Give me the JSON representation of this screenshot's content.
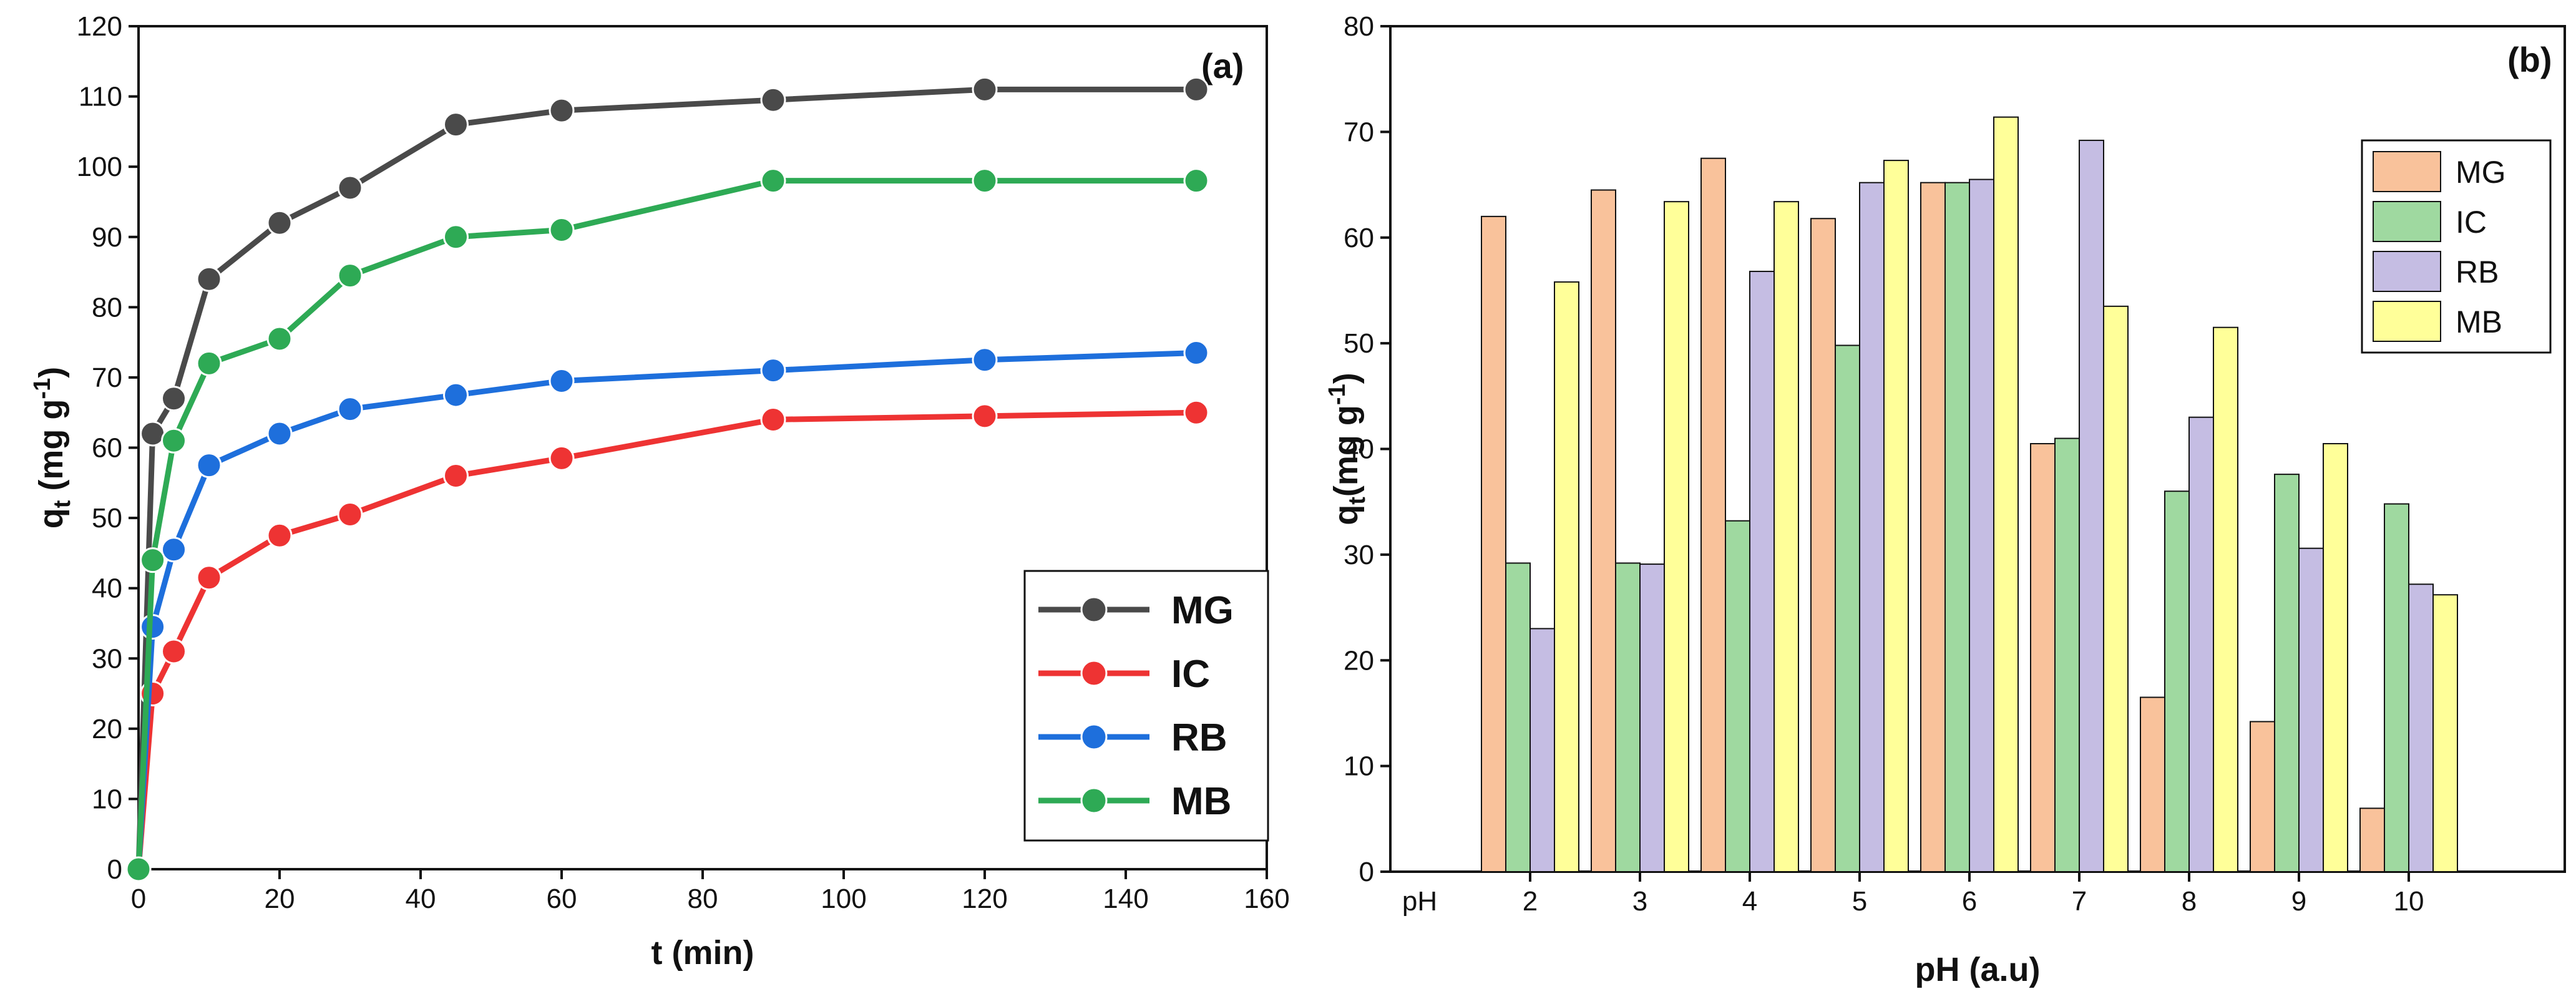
{
  "chart_data": [
    {
      "type": "line",
      "panel_label": "(a)",
      "xlabel": "t (min)",
      "ylabel": {
        "main": "q",
        "sub": "t",
        "units": " (mg g",
        "sup": "-1",
        "close": ")"
      },
      "xlim": [
        0,
        160
      ],
      "ylim": [
        0,
        120
      ],
      "xticks": [
        0,
        20,
        40,
        60,
        80,
        100,
        120,
        140,
        160
      ],
      "yticks": [
        0,
        10,
        20,
        30,
        40,
        50,
        60,
        70,
        80,
        90,
        100,
        110,
        120
      ],
      "legend_position": "bottom-right",
      "x": [
        0,
        2,
        5,
        10,
        20,
        30,
        45,
        60,
        90,
        120,
        150
      ],
      "series": [
        {
          "name": "MG",
          "color": "#4a4a4a",
          "values": [
            0,
            62,
            67,
            84,
            92,
            97,
            106,
            108,
            109.5,
            111,
            111
          ]
        },
        {
          "name": "IC",
          "color": "#ee3333",
          "values": [
            0,
            25,
            31,
            41.5,
            47.5,
            50.5,
            56,
            58.5,
            64,
            64.5,
            65
          ]
        },
        {
          "name": "RB",
          "color": "#1e6fdc",
          "values": [
            0,
            34.5,
            45.5,
            57.5,
            62,
            65.5,
            67.5,
            69.5,
            71,
            72.5,
            73.5
          ]
        },
        {
          "name": "MB",
          "color": "#2eaa55",
          "values": [
            0,
            44,
            61,
            72,
            75.5,
            84.5,
            90,
            91,
            98,
            98,
            98
          ]
        }
      ]
    },
    {
      "type": "bar",
      "panel_label": "(b)",
      "xlabel": "pH (a.u)",
      "ylabel": {
        "main": "q",
        "sub": "t",
        "units": "(mg g",
        "sup": "-1",
        "close": ")"
      },
      "ylim": [
        0,
        80
      ],
      "yticks": [
        0,
        10,
        20,
        30,
        40,
        50,
        60,
        70,
        80
      ],
      "category_axis_label": "pH",
      "categories": [
        "2",
        "3",
        "4",
        "5",
        "6",
        "7",
        "8",
        "9",
        "10"
      ],
      "legend_position": "top-right",
      "series": [
        {
          "name": "MG",
          "color": "#f9c29b",
          "values": [
            62,
            64.5,
            67.5,
            61.8,
            65.2,
            40.5,
            16.5,
            14.2,
            6
          ]
        },
        {
          "name": "IC",
          "color": "#9fd9a0",
          "values": [
            29.2,
            29.2,
            33.2,
            49.8,
            65.2,
            41,
            36,
            37.6,
            34.8
          ]
        },
        {
          "name": "RB",
          "color": "#c5bde3",
          "values": [
            23,
            29.1,
            56.8,
            65.2,
            65.5,
            69.2,
            43,
            30.6,
            27.2
          ]
        },
        {
          "name": "MB",
          "color": "#ffff99",
          "values": [
            55.8,
            63.4,
            63.4,
            67.3,
            71.4,
            53.5,
            51.5,
            40.5,
            26.2
          ]
        }
      ]
    }
  ]
}
